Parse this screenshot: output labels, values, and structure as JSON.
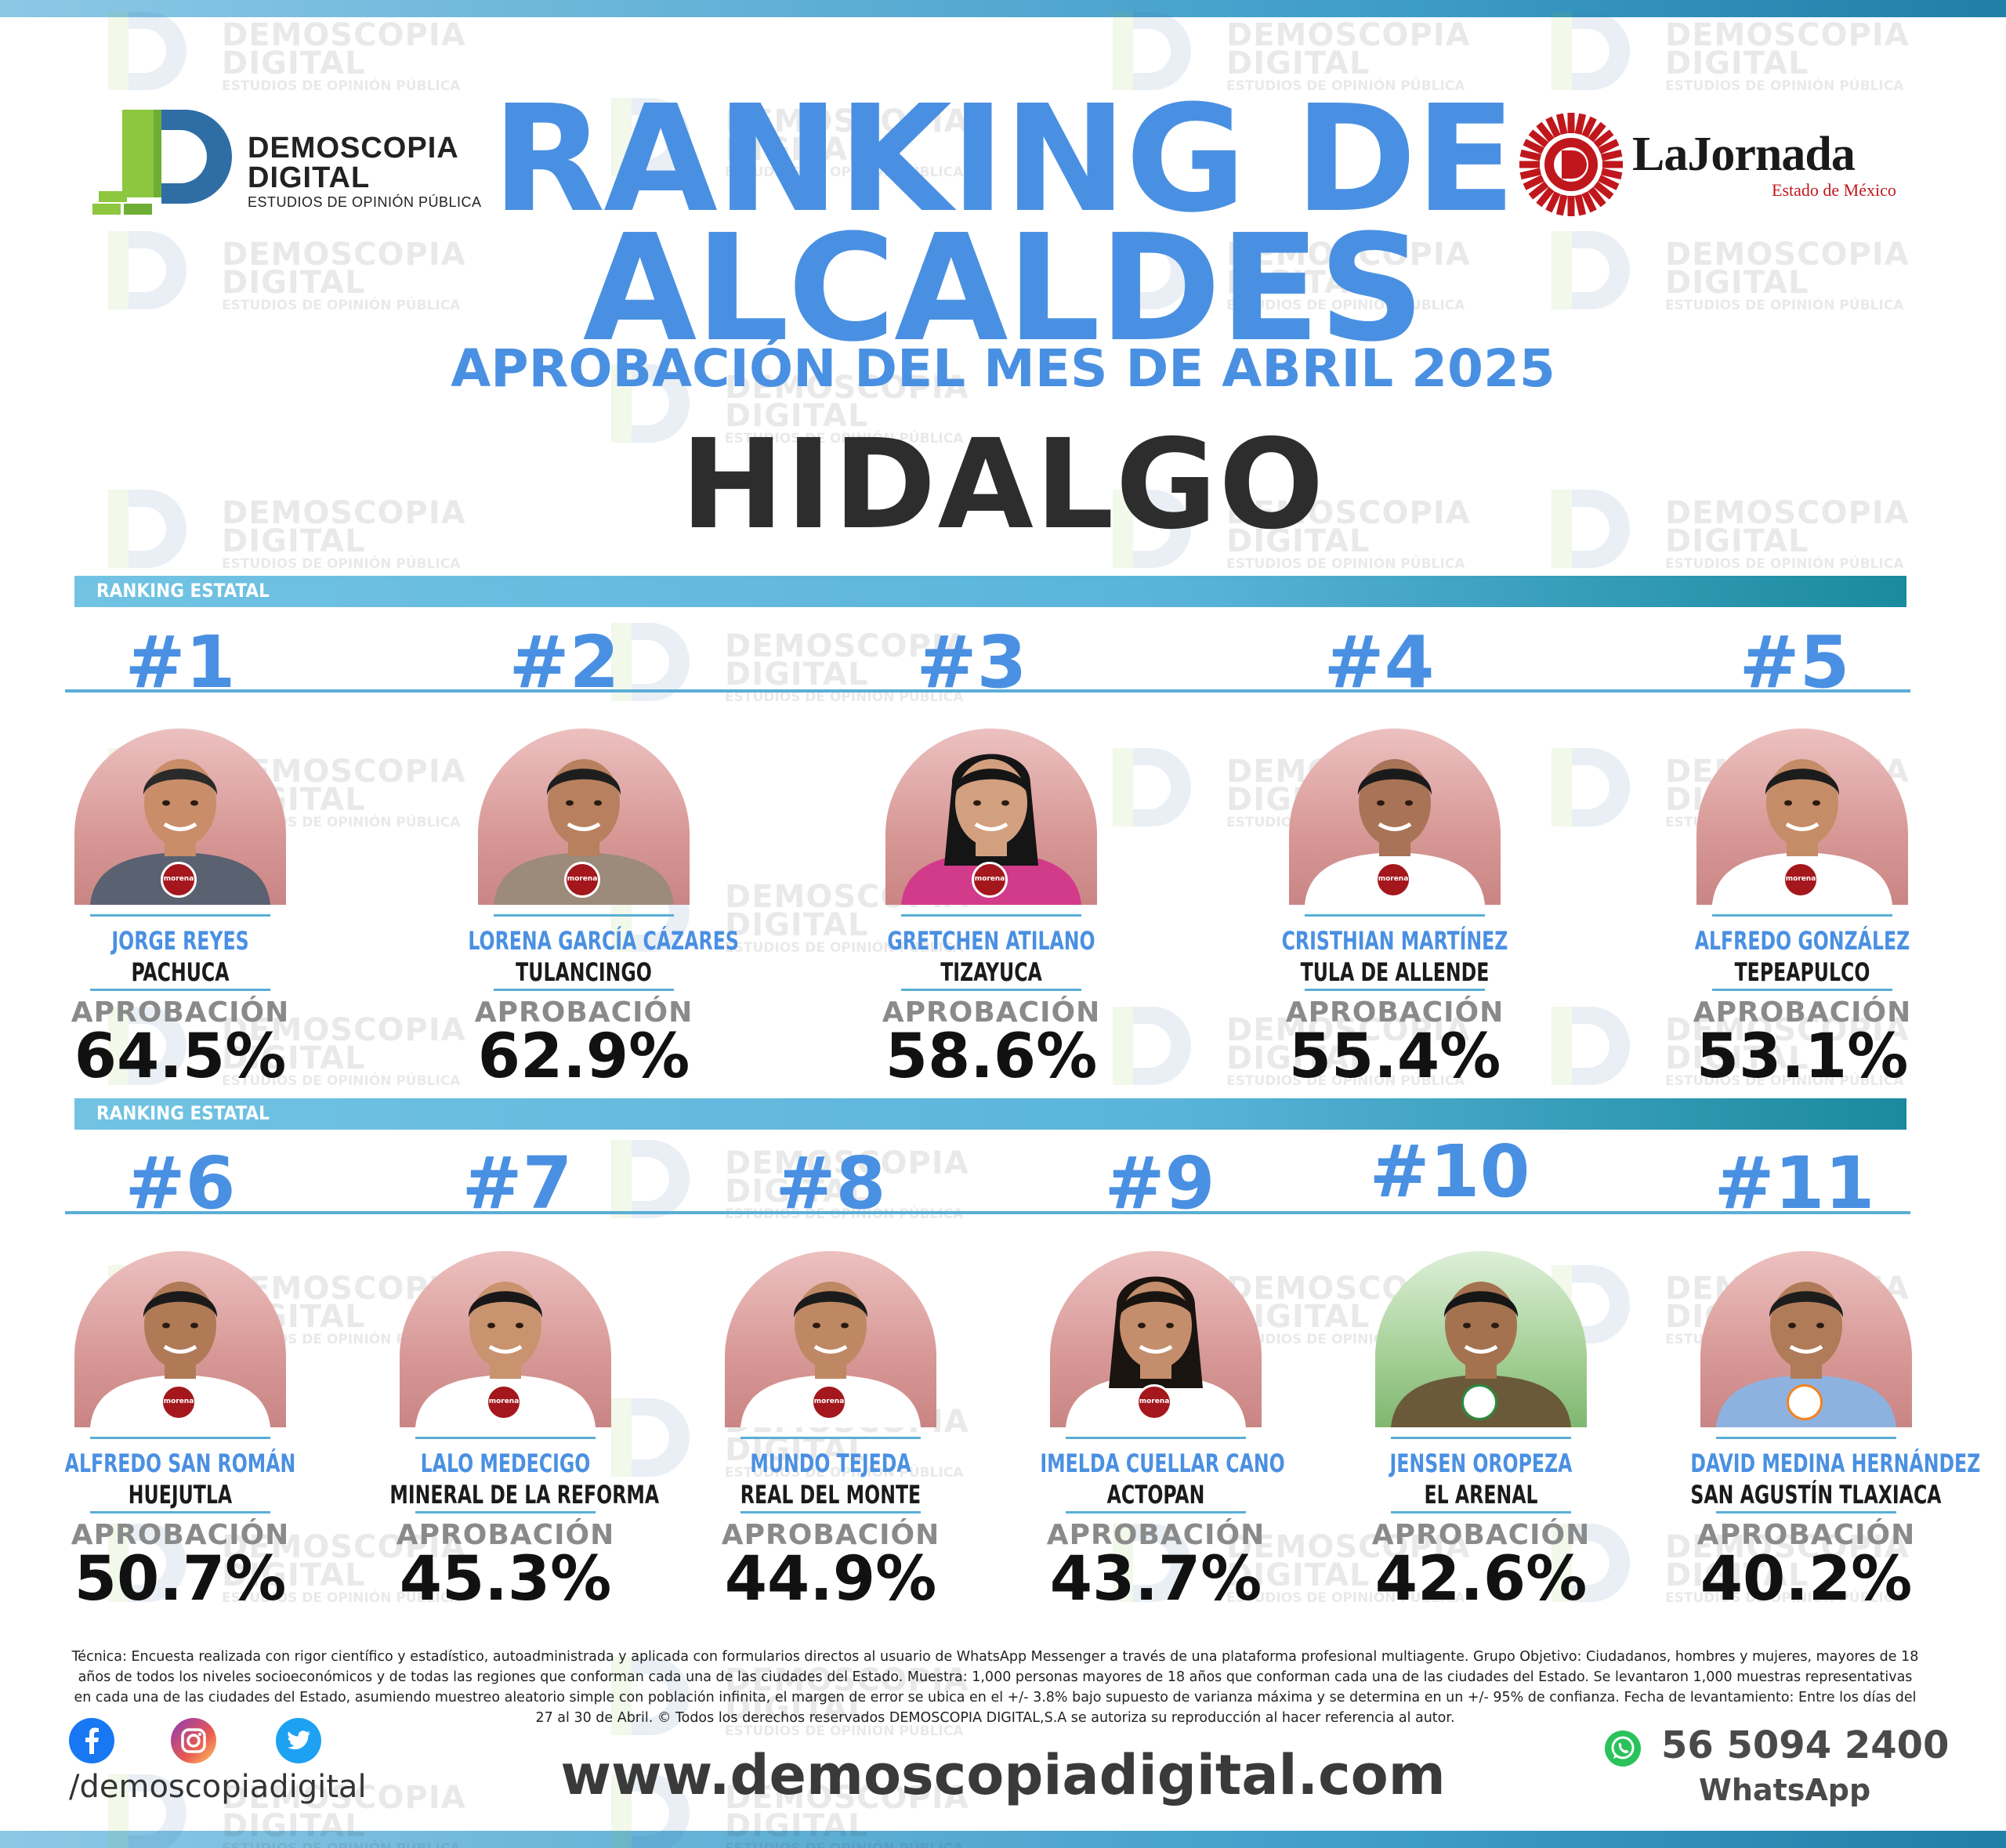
{
  "brand": {
    "left_logo_line1": "DEMOSCOPIA",
    "left_logo_line2": "DIGITAL",
    "left_logo_tag": "ESTUDIOS DE OPINIÓN PÚBLICA",
    "right_logo_name": "LaJornada",
    "right_logo_sub": "Estado de México",
    "watermark_line1": "DEMOSCOPIA",
    "watermark_line2": "DIGITAL",
    "watermark_tag": "ESTUDIOS DE OPINIÓN PÚBLICA"
  },
  "header": {
    "title_line1": "RANKING DE",
    "title_line2": "ALCALDES",
    "subtitle": "APROBACIÓN DEL MES DE ABRIL 2025",
    "state": "HIDALGO"
  },
  "section_label": "RANKING ESTATAL",
  "approval_label": "APROBACIÓN",
  "ranking": [
    {
      "rank": "#1",
      "name": "JORGE REYES",
      "city": "PACHUCA",
      "approval": "64.5%",
      "party_icon": "morena-badge",
      "party": "morena"
    },
    {
      "rank": "#2",
      "name": "LORENA GARCÍA CÁZARES",
      "city": "TULANCINGO",
      "approval": "62.9%",
      "party_icon": "morena-badge",
      "party": "morena"
    },
    {
      "rank": "#3",
      "name": "GRETCHEN ATILANO",
      "city": "TIZAYUCA",
      "approval": "58.6%",
      "party_icon": "morena-badge",
      "party": "morena"
    },
    {
      "rank": "#4",
      "name": "CRISTHIAN MARTÍNEZ",
      "city": "TULA DE ALLENDE",
      "approval": "55.4%",
      "party_icon": "morena-badge",
      "party": "morena"
    },
    {
      "rank": "#5",
      "name": "ALFREDO GONZÁLEZ",
      "city": "TEPEAPULCO",
      "approval": "53.1%",
      "party_icon": "morena-badge",
      "party": "morena"
    },
    {
      "rank": "#6",
      "name": "ALFREDO SAN ROMÁN",
      "city": "HUEJUTLA",
      "approval": "50.7%",
      "party_icon": "morena-badge",
      "party": "morena"
    },
    {
      "rank": "#7",
      "name": "LALO MEDECIGO",
      "city": "MINERAL DE LA REFORMA",
      "approval": "45.3%",
      "party_icon": "morena-badge",
      "party": "morena"
    },
    {
      "rank": "#8",
      "name": "MUNDO TEJEDA",
      "city": "REAL DEL MONTE",
      "approval": "44.9%",
      "party_icon": "morena-badge",
      "party": "morena"
    },
    {
      "rank": "#9",
      "name": "IMELDA CUELLAR CANO",
      "city": "ACTOPAN",
      "approval": "43.7%",
      "party_icon": "morena-badge",
      "party": "morena"
    },
    {
      "rank": "#10",
      "name": "JENSEN OROPEZA",
      "city": "EL ARENAL",
      "approval": "42.6%",
      "party_icon": "pri-badge",
      "party": "PRI"
    },
    {
      "rank": "#11",
      "name": "DAVID MEDINA HERNÁNDEZ",
      "city": "SAN AGUSTÍN TLAXIACA",
      "approval": "40.2%",
      "party_icon": "movimiento-ciudadano-badge",
      "party": ""
    }
  ],
  "footer": {
    "technical_note": "Técnica: Encuesta realizada con rigor científico y estadístico, autoadministrada y aplicada con formularios directos al usuario de WhatsApp Messenger a través de una plataforma profesional multiagente. Grupo Objetivo: Ciudadanos, hombres y mujeres, mayores de 18 años de todos los niveles socioeconómicos y de todas las regiones que conforman cada una de las ciudades del Estado. Muestra: 1,000 personas mayores de 18 años que conforman cada una de las ciudades del Estado. Se levantaron 1,000 muestras representativas en cada una de las ciudades del Estado, asumiendo muestreo aleatorio simple con población infinita, el margen de error se ubica en el +/- 3.8% bajo supuesto de varianza máxima y se determina en un +/- 95% de confianza. Fecha de levantamiento: Entre los días del 27 al 30 de Abril. © Todos los derechos reservados DEMOSCOPIA DIGITAL,S.A se autoriza su reproducción al hacer referencia al autor.",
    "social_handle": "/demoscopiadigital",
    "website": "www.demoscopiadigital.com",
    "phone": "56 5094 2400",
    "whatsapp_label": "WhatsApp",
    "social_icons": [
      "facebook-icon",
      "instagram-icon",
      "twitter-icon"
    ]
  },
  "colors": {
    "accent_blue": "#4a90e2",
    "bar_blue": "#5ab4da",
    "morena_red": "#a3171d",
    "jornada_red": "#c0171d",
    "dd_green": "#8dc63f",
    "dd_blue": "#2f6ea5"
  }
}
